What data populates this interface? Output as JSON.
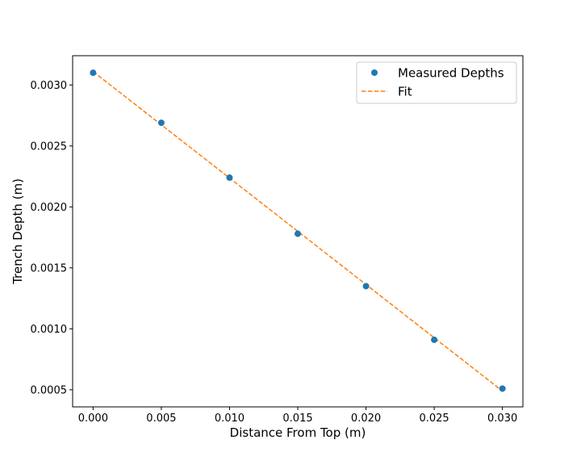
{
  "chart_data": {
    "type": "line",
    "title": "",
    "xlabel": "Distance From Top (m)",
    "ylabel": "Trench Depth (m)",
    "xlim": [
      -0.0015,
      0.0315
    ],
    "ylim": [
      0.00036,
      0.00324
    ],
    "xticks": [
      0.0,
      0.005,
      0.01,
      0.015,
      0.02,
      0.025,
      0.03
    ],
    "xtick_labels": [
      "0.000",
      "0.005",
      "0.010",
      "0.015",
      "0.020",
      "0.025",
      "0.030"
    ],
    "yticks": [
      0.0005,
      0.001,
      0.0015,
      0.002,
      0.0025,
      0.003
    ],
    "ytick_labels": [
      "0.0005",
      "0.0010",
      "0.0015",
      "0.0020",
      "0.0025",
      "0.0030"
    ],
    "grid": false,
    "legend": {
      "position": "top-right",
      "entries": [
        "Measured Depths",
        "Fit"
      ]
    },
    "series": [
      {
        "name": "Measured Depths",
        "kind": "scatter",
        "color": "#1f77b4",
        "x": [
          0.0,
          0.005,
          0.01,
          0.015,
          0.02,
          0.025,
          0.03
        ],
        "y": [
          0.0031,
          0.00269,
          0.00224,
          0.00178,
          0.00135,
          0.00091,
          0.00051
        ]
      },
      {
        "name": "Fit",
        "kind": "line",
        "style": "dashed",
        "color": "#ff7f0e",
        "x": [
          0.0,
          0.03
        ],
        "y": [
          0.00311,
          0.00049
        ]
      }
    ]
  }
}
